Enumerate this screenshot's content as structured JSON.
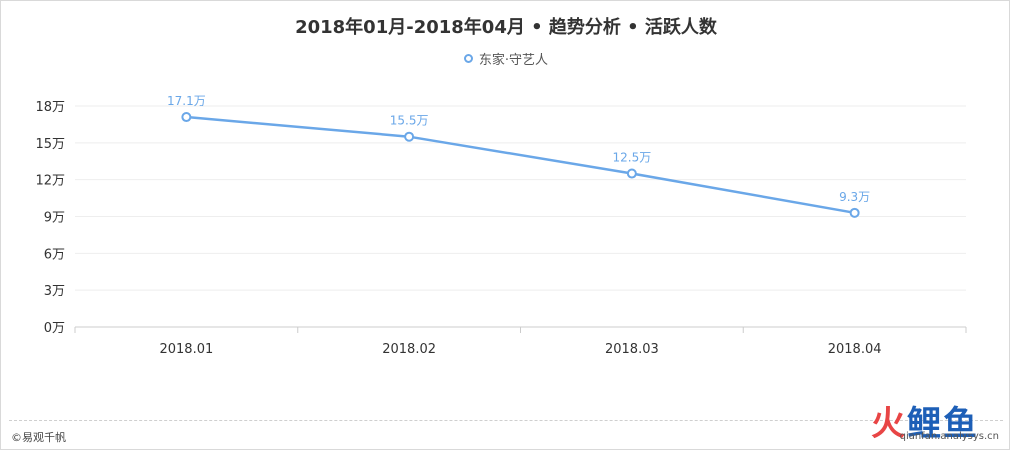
{
  "title": "2018年01月-2018年04月 • 趋势分析 • 活跃人数",
  "legend": {
    "label": "东家·守艺人"
  },
  "credit": "©易观千帆",
  "watermark": {
    "logo_a": "火",
    "logo_b": "鲤",
    "logo_c": "鱼",
    "url": "qianfan.analysys.cn"
  },
  "colors": {
    "series": "#6aa7e8",
    "grid": "#eeeeee",
    "axis": "#cccccc",
    "text": "#333333"
  },
  "chart_data": {
    "type": "line",
    "categories": [
      "2018.01",
      "2018.02",
      "2018.03",
      "2018.04"
    ],
    "series": [
      {
        "name": "东家·守艺人",
        "values": [
          17.1,
          15.5,
          12.5,
          9.3
        ],
        "labels": [
          "17.1万",
          "15.5万",
          "12.5万",
          "9.3万"
        ]
      }
    ],
    "yticks": [
      "0万",
      "3万",
      "6万",
      "9万",
      "12万",
      "15万",
      "18万"
    ],
    "ylim": [
      0,
      18
    ],
    "unit": "万",
    "grid": true,
    "legend_position": "top-center"
  }
}
